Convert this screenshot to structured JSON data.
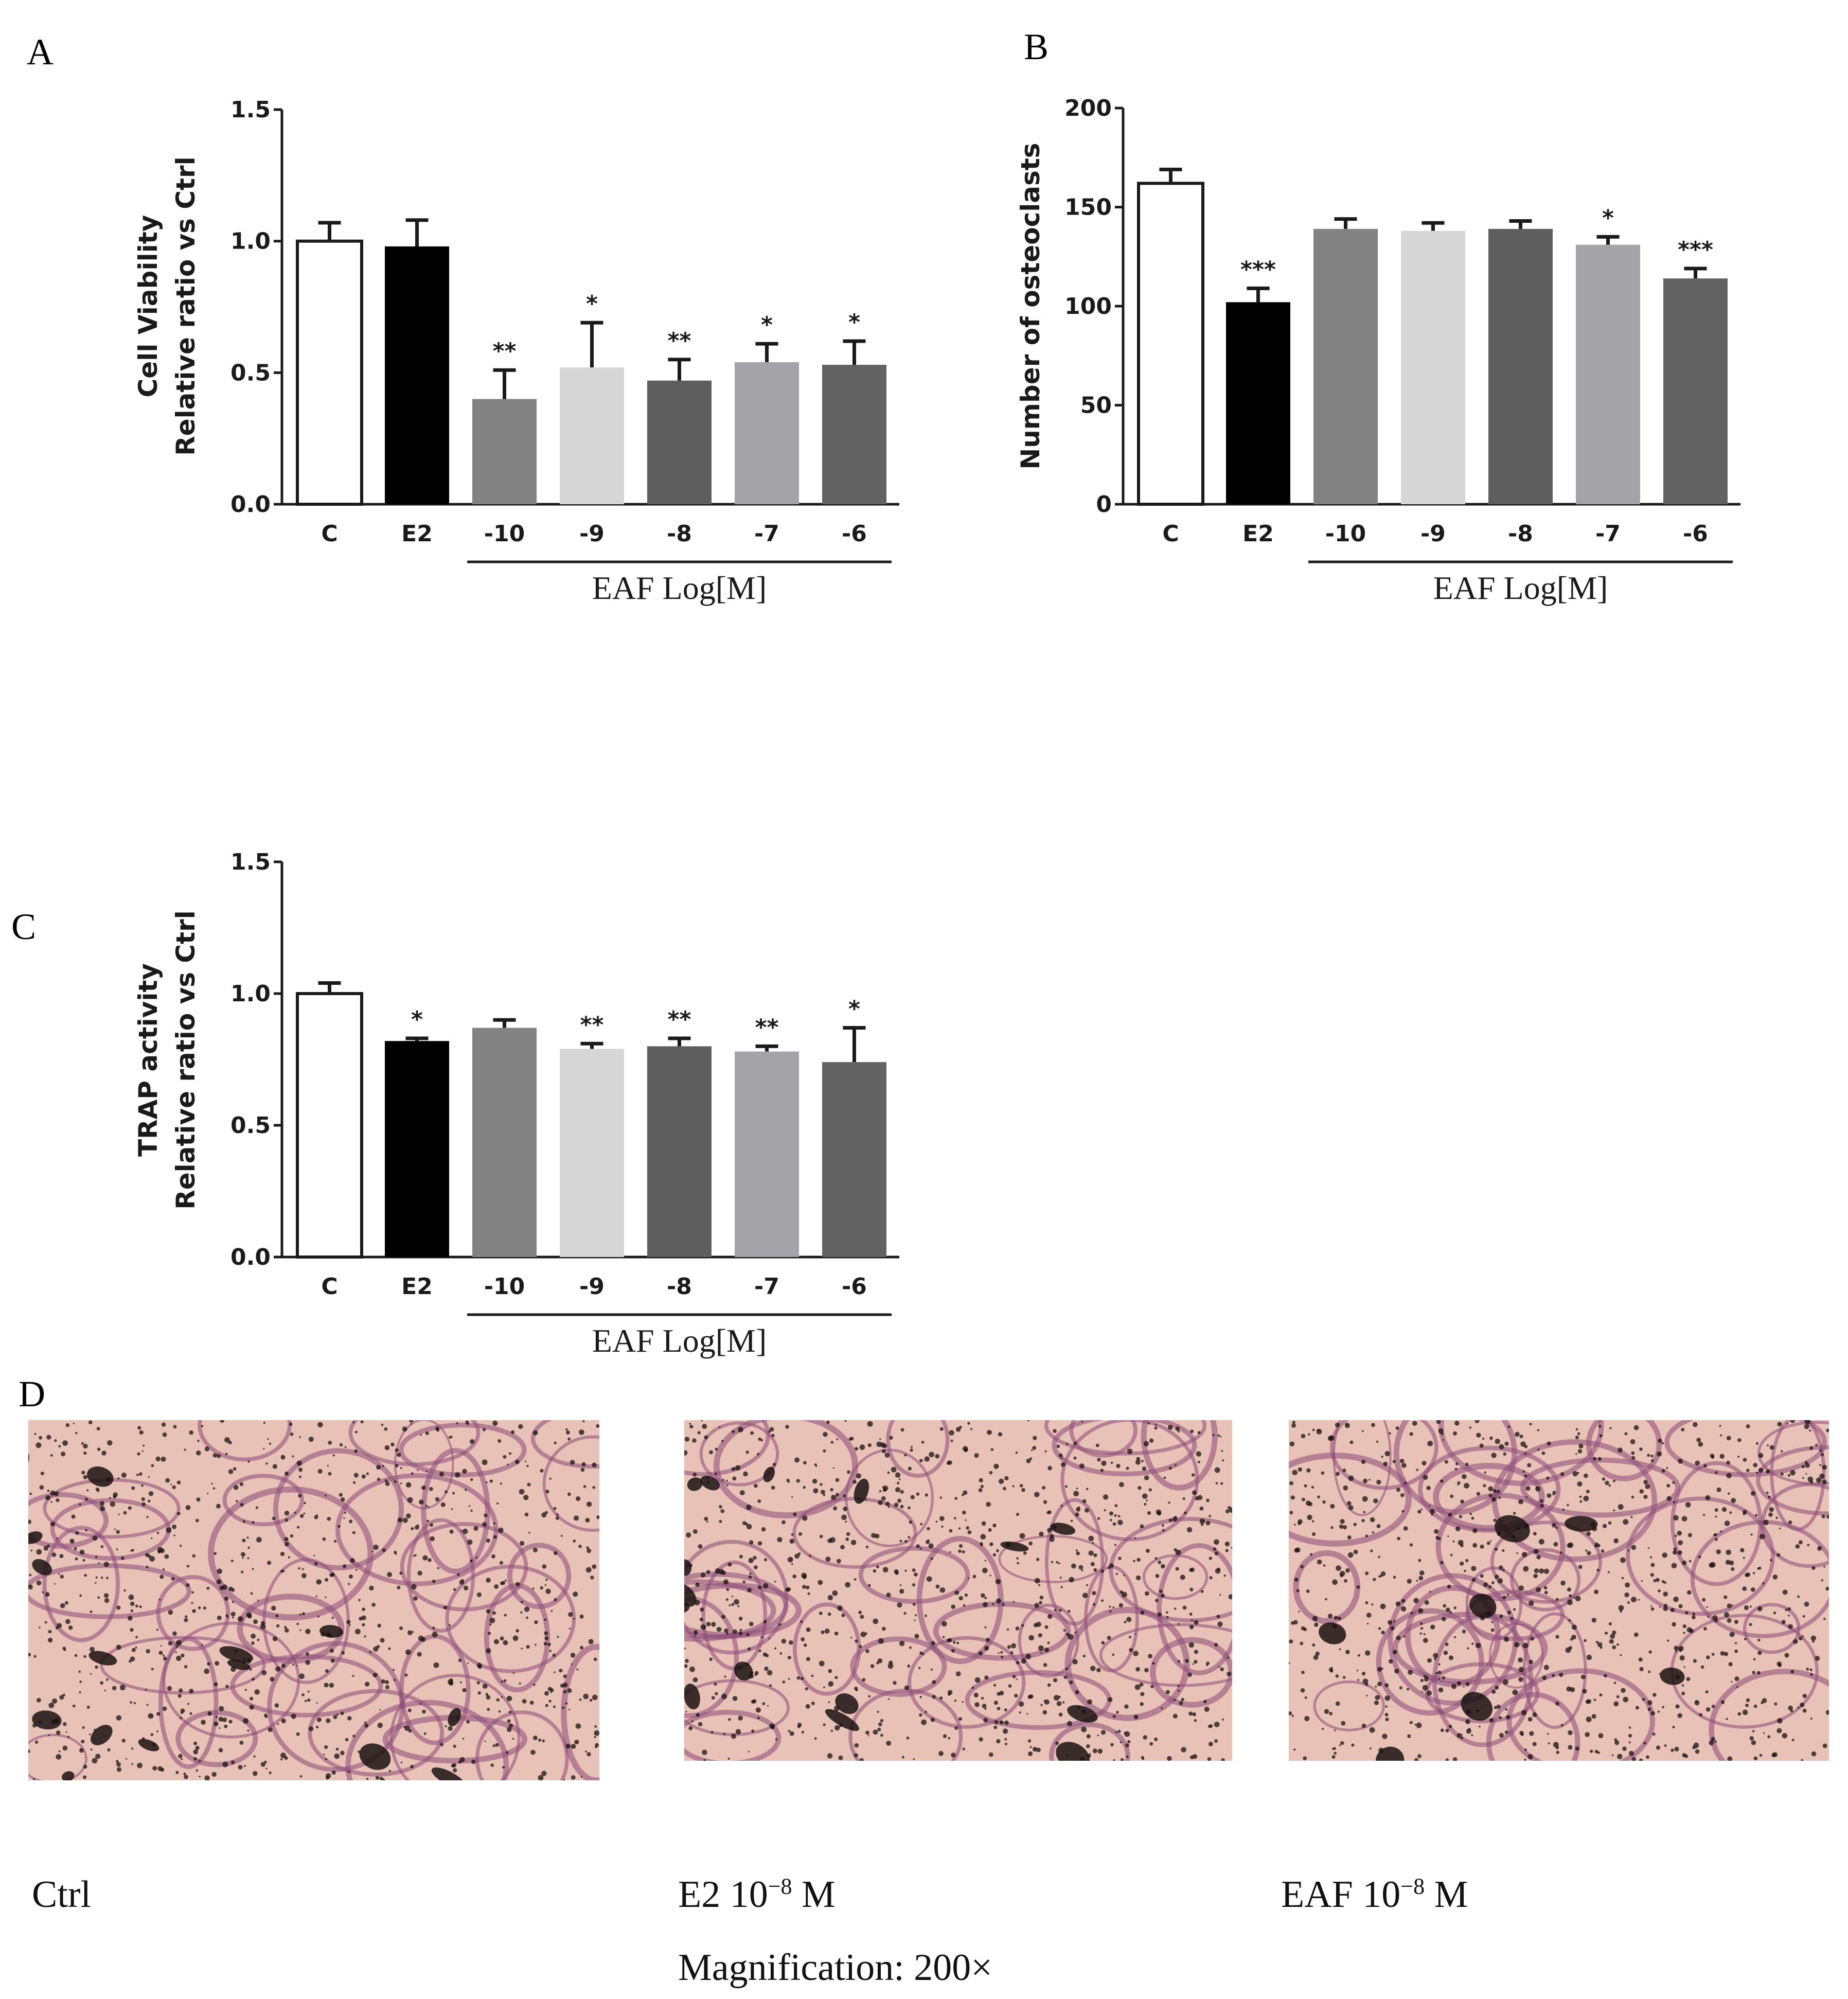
{
  "panels": {
    "a": "A",
    "b": "B",
    "c": "C",
    "d": "D"
  },
  "chart_data": [
    {
      "id": "A",
      "type": "bar",
      "categories": [
        "C",
        "E2",
        "-10",
        "-9",
        "-8",
        "-7",
        "-6"
      ],
      "values": [
        1.0,
        0.98,
        0.4,
        0.52,
        0.47,
        0.54,
        0.53
      ],
      "errors": [
        0.07,
        0.1,
        0.11,
        0.17,
        0.08,
        0.07,
        0.09
      ],
      "significance": [
        "",
        "",
        "**",
        "*",
        "**",
        "*",
        "*"
      ],
      "fill_colors": [
        "#ffffff",
        "#000000",
        "#828282",
        "#d6d6d6",
        "#5e5e5e",
        "#a4a4a8",
        "#626262"
      ],
      "ylabel": [
        "Cell Viability",
        "Relative ratio vs Ctrl"
      ],
      "ylim": [
        0,
        1.5
      ],
      "yticks": [
        "0.0",
        "0.5",
        "1.0",
        "1.5"
      ],
      "group_label": "EAF Log[M]",
      "group_span": [
        "-10",
        "-6"
      ]
    },
    {
      "id": "B",
      "type": "bar",
      "categories": [
        "C",
        "E2",
        "-10",
        "-9",
        "-8",
        "-7",
        "-6"
      ],
      "values": [
        162,
        102,
        139,
        138,
        139,
        131,
        114
      ],
      "errors": [
        7,
        7,
        5,
        4,
        4,
        4,
        5
      ],
      "significance": [
        "",
        "***",
        "",
        "",
        "",
        "*",
        "***"
      ],
      "fill_colors": [
        "#ffffff",
        "#000000",
        "#828282",
        "#d6d6d6",
        "#5e5e5e",
        "#a4a4a8",
        "#626262"
      ],
      "ylabel": [
        "Number of osteoclasts"
      ],
      "ylim": [
        0,
        200
      ],
      "yticks": [
        "0",
        "50",
        "100",
        "150",
        "200"
      ],
      "group_label": "EAF Log[M]",
      "group_span": [
        "-10",
        "-6"
      ]
    },
    {
      "id": "C",
      "type": "bar",
      "categories": [
        "C",
        "E2",
        "-10",
        "-9",
        "-8",
        "-7",
        "-6"
      ],
      "values": [
        1.0,
        0.82,
        0.87,
        0.79,
        0.8,
        0.78,
        0.74
      ],
      "errors": [
        0.04,
        0.01,
        0.03,
        0.02,
        0.03,
        0.02,
        0.13
      ],
      "significance": [
        "",
        "*",
        "",
        "**",
        "**",
        "**",
        "*"
      ],
      "fill_colors": [
        "#ffffff",
        "#000000",
        "#828282",
        "#d6d6d6",
        "#5e5e5e",
        "#a4a4a8",
        "#626262"
      ],
      "ylabel": [
        "TRAP activity",
        "Relative ratio vs Ctrl"
      ],
      "ylim": [
        0,
        1.5
      ],
      "yticks": [
        "0.0",
        "0.5",
        "1.0",
        "1.5"
      ],
      "group_label": "EAF Log[M]",
      "group_span": [
        "-10",
        "-6"
      ]
    }
  ],
  "micrographs": [
    {
      "caption_main": "Ctrl",
      "caption_sup": "",
      "caption_tail": ""
    },
    {
      "caption_main": "E2 10",
      "caption_sup": "−8",
      "caption_tail": " M"
    },
    {
      "caption_main": "EAF 10",
      "caption_sup": "−8",
      "caption_tail": " M"
    }
  ],
  "magnification": "Magnification: 200×",
  "colors": {
    "stain_background": "#e8c2b6",
    "stain_purple": "#8a4a78",
    "stain_dark": "#1a1212"
  }
}
